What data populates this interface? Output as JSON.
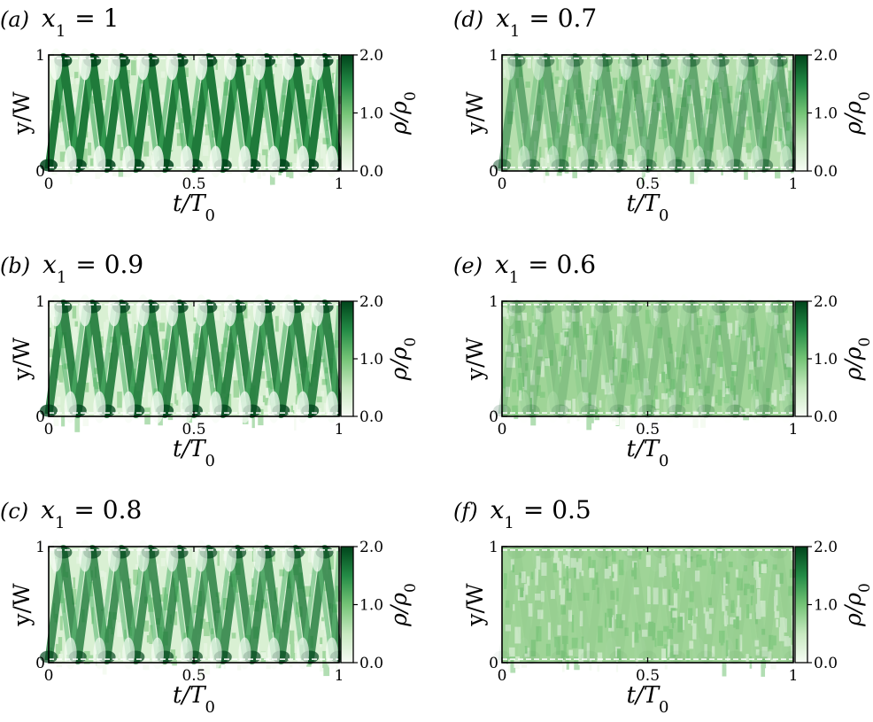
{
  "figure": {
    "background": "#ffffff"
  },
  "chart_data": [
    {
      "type": "heatmap",
      "panel_label": "(a)",
      "title": "x",
      "title_sub": "1",
      "title_value": "= 1",
      "x_axis": {
        "label": "t/T",
        "label_sub": "0",
        "ticks": [
          "0",
          "0.5",
          "1"
        ],
        "range": [
          0,
          1
        ]
      },
      "y_axis": {
        "label": "y/W",
        "ticks": [
          "0",
          "1"
        ],
        "range": [
          0,
          1
        ]
      },
      "colorbar": {
        "label": "ρ/ρ",
        "label_sub": "0",
        "ticks": [
          "2.0",
          "1.0",
          "0.0"
        ],
        "range": [
          0,
          2
        ],
        "colors": [
          "#f7fcf5",
          "#00441b"
        ]
      },
      "zigzag": {
        "crossings": 20,
        "amplitude": 1.0
      }
    },
    {
      "type": "heatmap",
      "panel_label": "(b)",
      "title": "x",
      "title_sub": "1",
      "title_value": "= 0.9",
      "x_axis": {
        "label": "t/T",
        "label_sub": "0",
        "ticks": [
          "0",
          "0.5",
          "1"
        ],
        "range": [
          0,
          1
        ]
      },
      "y_axis": {
        "label": "y/W",
        "ticks": [
          "0",
          "1"
        ],
        "range": [
          0,
          1
        ]
      },
      "colorbar": {
        "label": "ρ/ρ",
        "label_sub": "0",
        "ticks": [
          "2.0",
          "1.0",
          "0.0"
        ],
        "range": [
          0,
          2
        ],
        "colors": [
          "#f7fcf5",
          "#00441b"
        ]
      },
      "zigzag": {
        "crossings": 20,
        "amplitude": 0.9
      }
    },
    {
      "type": "heatmap",
      "panel_label": "(c)",
      "title": "x",
      "title_sub": "1",
      "title_value": "= 0.8",
      "x_axis": {
        "label": "t/T",
        "label_sub": "0",
        "ticks": [
          "0",
          "0.5",
          "1"
        ],
        "range": [
          0,
          1
        ]
      },
      "y_axis": {
        "label": "y/W",
        "ticks": [
          "0",
          "1"
        ],
        "range": [
          0,
          1
        ]
      },
      "colorbar": {
        "label": "ρ/ρ",
        "label_sub": "0",
        "ticks": [
          "2.0",
          "1.0",
          "0.0"
        ],
        "range": [
          0,
          2
        ],
        "colors": [
          "#f7fcf5",
          "#00441b"
        ]
      },
      "zigzag": {
        "crossings": 20,
        "amplitude": 0.8
      }
    },
    {
      "type": "heatmap",
      "panel_label": "(d)",
      "title": "x",
      "title_sub": "1",
      "title_value": "= 0.7",
      "x_axis": {
        "label": "t/T",
        "label_sub": "0",
        "ticks": [
          "0",
          "0.5",
          "1"
        ],
        "range": [
          0,
          1
        ]
      },
      "y_axis": {
        "label": "y/W",
        "ticks": [
          "0",
          "1"
        ],
        "range": [
          0,
          1
        ]
      },
      "colorbar": {
        "label": "ρ/ρ",
        "label_sub": "0",
        "ticks": [
          "2.0",
          "1.0",
          "0.0"
        ],
        "range": [
          0,
          2
        ],
        "colors": [
          "#f7fcf5",
          "#00441b"
        ]
      },
      "zigzag": {
        "crossings": 20,
        "amplitude": 0.55
      }
    },
    {
      "type": "heatmap",
      "panel_label": "(e)",
      "title": "x",
      "title_sub": "1",
      "title_value": "= 0.6",
      "x_axis": {
        "label": "t/T",
        "label_sub": "0",
        "ticks": [
          "0",
          "0.5",
          "1"
        ],
        "range": [
          0,
          1
        ]
      },
      "y_axis": {
        "label": "y/W",
        "ticks": [
          "0",
          "1"
        ],
        "range": [
          0,
          1
        ]
      },
      "colorbar": {
        "label": "ρ/ρ",
        "label_sub": "0",
        "ticks": [
          "2.0",
          "1.0",
          "0.0"
        ],
        "range": [
          0,
          2
        ],
        "colors": [
          "#f7fcf5",
          "#00441b"
        ]
      },
      "zigzag": {
        "crossings": 20,
        "amplitude": 0.2
      }
    },
    {
      "type": "heatmap",
      "panel_label": "(f)",
      "title": "x",
      "title_sub": "1",
      "title_value": "= 0.5",
      "x_axis": {
        "label": "t/T",
        "label_sub": "0",
        "ticks": [
          "0",
          "0.5",
          "1"
        ],
        "range": [
          0,
          1
        ]
      },
      "y_axis": {
        "label": "y/W",
        "ticks": [
          "0",
          "1"
        ],
        "range": [
          0,
          1
        ]
      },
      "colorbar": {
        "label": "ρ/ρ",
        "label_sub": "0",
        "ticks": [
          "2.0",
          "1.0",
          "0.0"
        ],
        "range": [
          0,
          2
        ],
        "colors": [
          "#f7fcf5",
          "#00441b"
        ]
      },
      "zigzag": {
        "crossings": 20,
        "amplitude": 0.05
      }
    }
  ]
}
